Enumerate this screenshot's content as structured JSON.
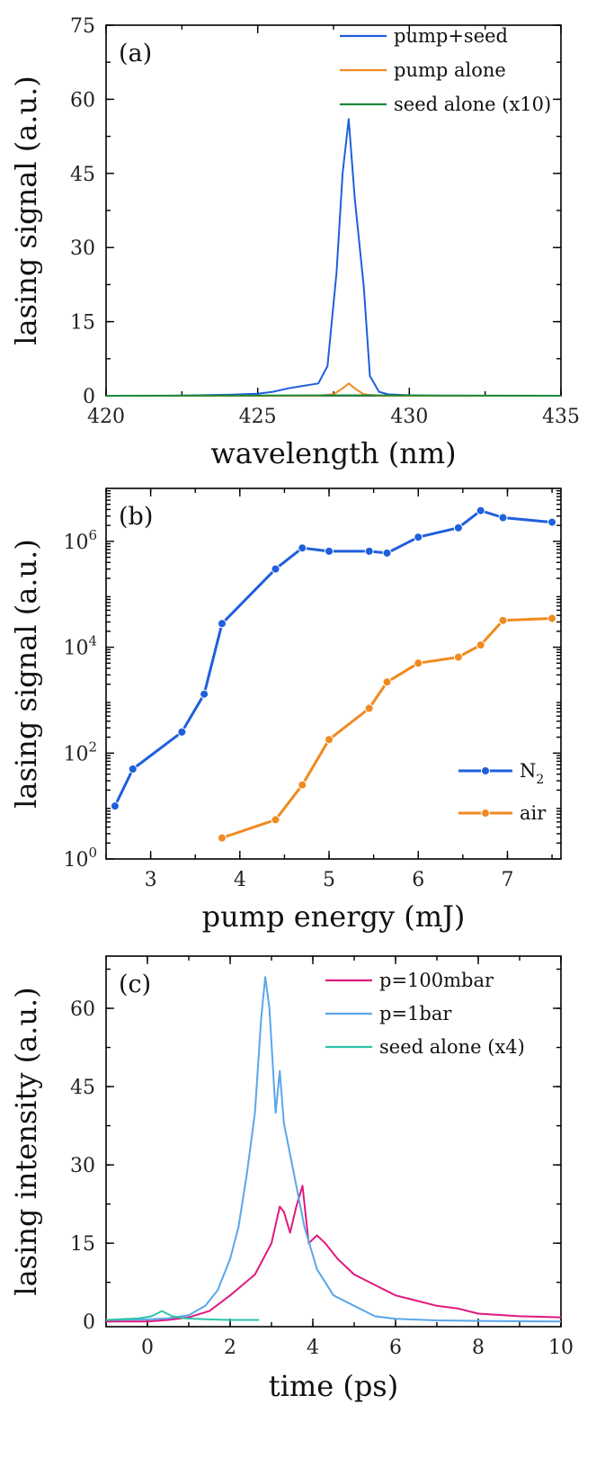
{
  "chart_data": [
    {
      "panel": "(a)",
      "type": "line",
      "title": "",
      "xlabel": "wavelength (nm)",
      "ylabel": "lasing signal (a.u.)",
      "xlim": [
        420,
        435
      ],
      "ylim": [
        0,
        75
      ],
      "xticks": [
        420,
        425,
        430,
        435
      ],
      "yticks": [
        0,
        15,
        30,
        45,
        60,
        75
      ],
      "legend_position": "top-right",
      "series": [
        {
          "name": "pump+seed",
          "color": "#1f5fdc",
          "x": [
            420,
            421,
            422,
            423,
            424,
            425,
            425.5,
            426,
            426.5,
            427,
            427.3,
            427.6,
            427.8,
            428.0,
            428.2,
            428.5,
            428.7,
            429,
            429.3,
            430,
            431,
            432,
            433,
            434,
            435
          ],
          "y": [
            0,
            0,
            0,
            0.1,
            0.2,
            0.4,
            0.8,
            1.5,
            2.0,
            2.5,
            6,
            25,
            45,
            56,
            40,
            22,
            4,
            0.8,
            0.3,
            0.1,
            0,
            0,
            0,
            0,
            0
          ]
        },
        {
          "name": "pump alone",
          "color": "#f08a1e",
          "x": [
            420,
            427,
            427.5,
            427.8,
            428.0,
            428.2,
            428.5,
            429,
            435
          ],
          "y": [
            0,
            0,
            0.3,
            1.5,
            2.5,
            1.5,
            0.3,
            0,
            0
          ]
        },
        {
          "name": "seed alone (x10)",
          "color": "#1a8a3a",
          "x": [
            420,
            425,
            428,
            431,
            435
          ],
          "y": [
            0,
            0.05,
            0.1,
            0.05,
            0
          ]
        }
      ]
    },
    {
      "panel": "(b)",
      "type": "line",
      "title": "",
      "xlabel": "pump energy (mJ)",
      "ylabel": "lasing signal (a.u.)",
      "xlim": [
        2.5,
        7.6
      ],
      "ylim": [
        1,
        10000000
      ],
      "yscale": "log",
      "xticks": [
        3,
        4,
        5,
        6,
        7
      ],
      "yticks": [
        1,
        100,
        10000,
        1000000
      ],
      "yticklabels": [
        "10^0",
        "10^2",
        "10^4",
        "10^6"
      ],
      "legend_position": "bottom-right",
      "series": [
        {
          "name": "N_2",
          "color": "#1f5fdc",
          "x": [
            2.6,
            2.8,
            3.35,
            3.6,
            3.8,
            4.4,
            4.7,
            5.0,
            5.45,
            5.65,
            6.0,
            6.45,
            6.7,
            6.95,
            7.5
          ],
          "y": [
            10,
            50,
            250,
            1300,
            28000,
            300000,
            750000,
            650000,
            650000,
            600000,
            1200000,
            1800000,
            3800000,
            2800000,
            2300000
          ]
        },
        {
          "name": "air",
          "color": "#f08a1e",
          "x": [
            3.8,
            4.4,
            4.7,
            5.0,
            5.45,
            5.65,
            6.0,
            6.45,
            6.7,
            6.95,
            7.5
          ],
          "y": [
            2.5,
            5.5,
            25,
            180,
            700,
            2200,
            5000,
            6500,
            11000,
            32000,
            35000
          ]
        }
      ]
    },
    {
      "panel": "(c)",
      "type": "line",
      "title": "",
      "xlabel": "time (ps)",
      "ylabel": "lasing intensity (a.u.)",
      "xlim": [
        -1,
        10
      ],
      "ylim": [
        -1,
        70
      ],
      "xticks": [
        0,
        2,
        4,
        6,
        8,
        10
      ],
      "yticks": [
        0,
        15,
        30,
        45,
        60
      ],
      "legend_position": "top-right",
      "series": [
        {
          "name": "p=100mbar",
          "color": "#e0197d",
          "x": [
            -1,
            0,
            0.5,
            1,
            1.5,
            2,
            2.3,
            2.6,
            2.8,
            3.0,
            3.2,
            3.3,
            3.45,
            3.6,
            3.75,
            3.9,
            4.1,
            4.3,
            4.6,
            5.0,
            5.5,
            6,
            6.5,
            7,
            7.5,
            8,
            9,
            10
          ],
          "y": [
            0,
            0,
            0.3,
            0.8,
            2,
            5,
            7,
            9,
            12,
            15,
            22,
            21,
            17,
            22,
            26,
            15,
            16.5,
            15,
            12,
            9,
            7,
            5,
            4,
            3,
            2.5,
            1.5,
            1,
            0.8
          ]
        },
        {
          "name": "p=1bar",
          "color": "#5aa6ea",
          "x": [
            -1,
            0,
            0.5,
            1,
            1.4,
            1.7,
            2.0,
            2.2,
            2.4,
            2.6,
            2.75,
            2.85,
            2.95,
            3.1,
            3.2,
            3.3,
            3.5,
            3.8,
            4.1,
            4.5,
            5.0,
            5.5,
            6,
            7,
            8,
            10
          ],
          "y": [
            0.3,
            0.4,
            0.6,
            1.2,
            3,
            6,
            12,
            18,
            28,
            40,
            58,
            66,
            60,
            40,
            48,
            38,
            30,
            18,
            10,
            5,
            3,
            1,
            0.5,
            0.2,
            0.1,
            0
          ]
        },
        {
          "name": "seed alone (x4)",
          "color": "#2ec4a8",
          "x": [
            -1,
            -0.2,
            0.1,
            0.35,
            0.6,
            0.9,
            1.5,
            2.0,
            2.7
          ],
          "y": [
            0.3,
            0.6,
            1.0,
            2.0,
            1.0,
            0.6,
            0.4,
            0.3,
            0.3
          ]
        }
      ]
    }
  ]
}
